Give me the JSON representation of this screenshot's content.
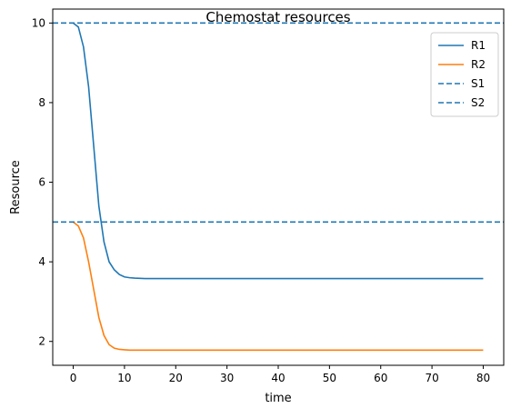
{
  "chart_data": {
    "type": "line",
    "title": "Chemostat resources",
    "xlabel": "time",
    "ylabel": "Resource",
    "xlim": [
      -4,
      84
    ],
    "ylim": [
      1.4,
      10.35
    ],
    "xticks": [
      0,
      10,
      20,
      30,
      40,
      50,
      60,
      70,
      80
    ],
    "yticks": [
      2,
      4,
      6,
      8,
      10
    ],
    "grid": false,
    "legend_position": "top-right",
    "series": [
      {
        "name": "R1",
        "color": "#1f77b4",
        "style": "solid",
        "x": [
          0,
          1,
          2,
          3,
          4,
          5,
          6,
          7,
          8,
          9,
          10,
          11,
          12,
          14,
          16,
          20,
          30,
          40,
          50,
          60,
          70,
          80
        ],
        "y": [
          10.0,
          9.9,
          9.4,
          8.4,
          6.9,
          5.4,
          4.5,
          4.0,
          3.8,
          3.68,
          3.62,
          3.6,
          3.59,
          3.58,
          3.58,
          3.58,
          3.58,
          3.58,
          3.58,
          3.58,
          3.58,
          3.58
        ]
      },
      {
        "name": "R2",
        "color": "#ff7f0e",
        "style": "solid",
        "x": [
          0,
          1,
          2,
          3,
          4,
          5,
          6,
          7,
          8,
          9,
          10,
          11,
          12,
          14,
          16,
          20,
          30,
          40,
          50,
          60,
          70,
          80
        ],
        "y": [
          5.0,
          4.9,
          4.6,
          4.0,
          3.3,
          2.6,
          2.15,
          1.92,
          1.83,
          1.8,
          1.79,
          1.78,
          1.78,
          1.78,
          1.78,
          1.78,
          1.78,
          1.78,
          1.78,
          1.78,
          1.78,
          1.78
        ]
      },
      {
        "name": "S1",
        "color": "#1f77b4",
        "style": "dashed",
        "hline": 10
      },
      {
        "name": "S2",
        "color": "#1f77b4",
        "style": "dashed",
        "hline": 5
      }
    ]
  }
}
